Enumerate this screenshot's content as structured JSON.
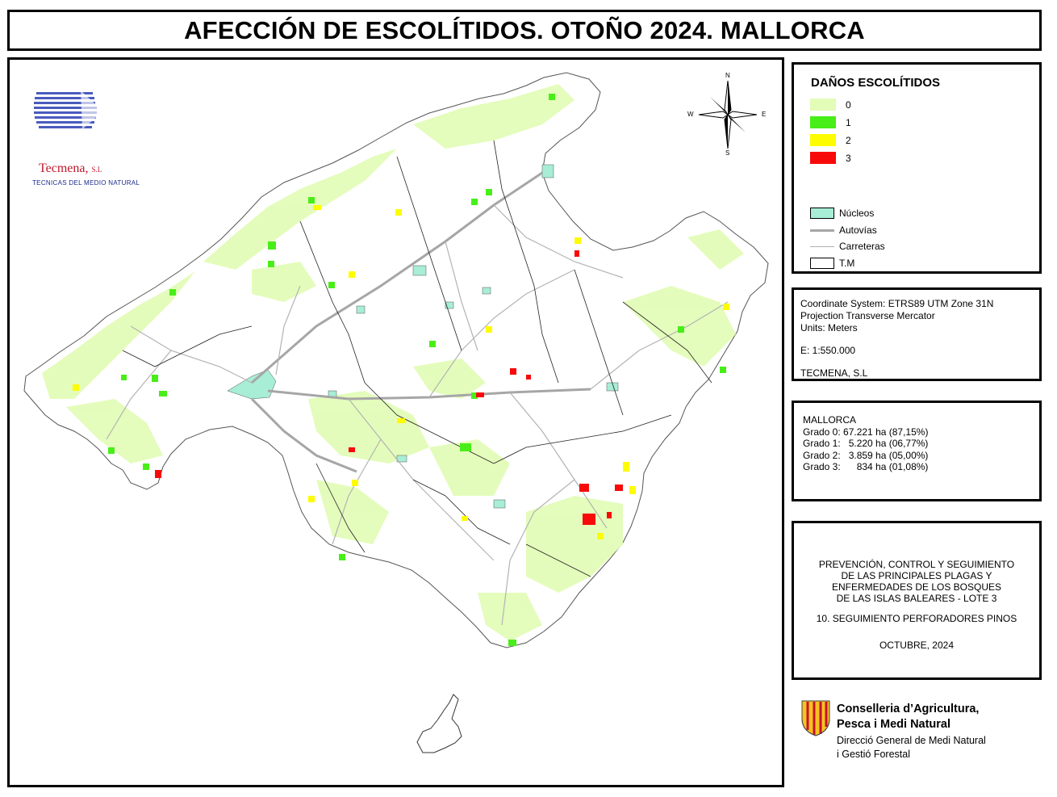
{
  "title": "AFECCIÓN DE ESCOLÍTIDOS. OTOÑO 2024. MALLORCA",
  "logo": {
    "name": "Tecmena",
    "name_suffix": "S.L",
    "subtitle": "TECNICAS DEL MEDIO NATURAL"
  },
  "compass": {
    "n": "N",
    "s": "S",
    "e": "E",
    "w": "W"
  },
  "legend": {
    "title": "DAÑOS ESCOLÍTIDOS",
    "damage_classes": [
      {
        "label": "0",
        "color": "#e3fcb8"
      },
      {
        "label": "1",
        "color": "#48ee18"
      },
      {
        "label": "2",
        "color": "#fdfc00"
      },
      {
        "label": "3",
        "color": "#f80a0a"
      }
    ],
    "layers": [
      {
        "label": "Núcleos",
        "color": "#a8eed6"
      },
      {
        "label": "Autovías",
        "color": "#a6a6a6"
      },
      {
        "label": "Carreteras",
        "color": "#b3b3b3"
      },
      {
        "label": "T.M",
        "color": "#ffffff"
      }
    ]
  },
  "coordinate_info": {
    "system": "Coordinate System: ETRS89 UTM Zone 31N",
    "projection": "Projection Transverse Mercator",
    "units": "Units: Meters",
    "scale": "E: 1:550.000",
    "author": "TECMENA, S.L"
  },
  "stats": {
    "region": "MALLORCA",
    "grades": [
      "Grado 0: 67.221 ha (87,15%)",
      "Grado 1:   5.220 ha (06,77%)",
      "Grado 2:   3.859 ha (05,00%)",
      "Grado 3:      834 ha (01,08%)"
    ]
  },
  "project": {
    "lines": [
      "PREVENCIÓN, CONTROL Y SEGUIMIENTO",
      "DE LAS PRINCIPALES PLAGAS Y",
      "ENFERMEDADES DE LOS BOSQUES",
      "DE LAS ISLAS BALEARES - LOTE 3"
    ],
    "task": "10. SEGUIMIENTO PERFORADORES PINOS",
    "date": "OCTUBRE, 2024"
  },
  "government": {
    "line1": "Conselleria d’Agricultura,",
    "line2": "Pesca i Medi Natural",
    "line3": "Direcció General de Medi Natural",
    "line4": "i Gestió Forestal"
  }
}
